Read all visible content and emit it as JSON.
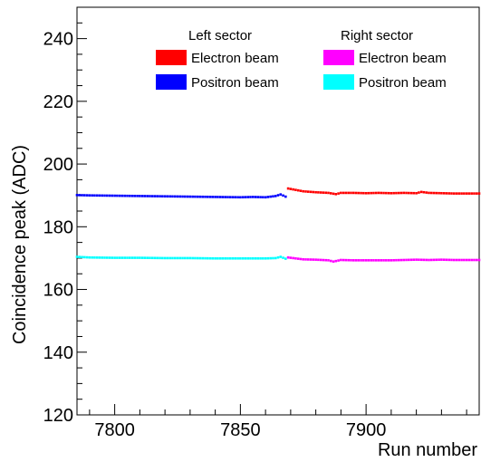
{
  "chart_data": {
    "type": "scatter",
    "title": "",
    "xlabel": "Run number",
    "ylabel": "Coincidence peak (ADC)",
    "xlim": [
      7785,
      7945
    ],
    "ylim": [
      120,
      250
    ],
    "xticks": [
      7800,
      7850,
      7900
    ],
    "yticks": [
      120,
      140,
      160,
      180,
      200,
      220,
      240
    ],
    "grid": false,
    "legend": {
      "placement": "top-right",
      "groups": [
        {
          "title": "Left sector",
          "entries": [
            "Electron beam",
            "Positron beam"
          ]
        },
        {
          "title": "Right sector",
          "entries": [
            "Electron beam",
            "Positron beam"
          ]
        }
      ]
    },
    "series": [
      {
        "name": "Electron beam",
        "sector": "Left sector",
        "color": "#ff0000",
        "x": [
          7869,
          7875,
          7880,
          7885,
          7888,
          7890,
          7895,
          7900,
          7905,
          7910,
          7915,
          7920,
          7922,
          7925,
          7930,
          7935,
          7940,
          7945
        ],
        "y": [
          192.2,
          191.3,
          191.0,
          190.8,
          190.4,
          190.8,
          190.8,
          190.7,
          190.8,
          190.7,
          190.8,
          190.7,
          191.1,
          190.8,
          190.7,
          190.6,
          190.6,
          190.6
        ]
      },
      {
        "name": "Positron beam",
        "sector": "Left sector",
        "color": "#0000ff",
        "x": [
          7785,
          7790,
          7800,
          7810,
          7820,
          7830,
          7840,
          7850,
          7855,
          7860,
          7864,
          7866,
          7868
        ],
        "y": [
          190.1,
          190.0,
          189.9,
          189.8,
          189.7,
          189.6,
          189.5,
          189.4,
          189.5,
          189.4,
          189.8,
          190.3,
          189.6
        ]
      },
      {
        "name": "Electron beam",
        "sector": "Right sector",
        "color": "#ff00ff",
        "x": [
          7869,
          7875,
          7880,
          7885,
          7887,
          7890,
          7895,
          7900,
          7905,
          7910,
          7915,
          7920,
          7925,
          7930,
          7935,
          7940,
          7945
        ],
        "y": [
          170.2,
          169.6,
          169.5,
          169.3,
          168.9,
          169.4,
          169.3,
          169.3,
          169.3,
          169.3,
          169.4,
          169.5,
          169.4,
          169.5,
          169.4,
          169.4,
          169.4
        ]
      },
      {
        "name": "Positron beam",
        "sector": "Right sector",
        "color": "#00ffff",
        "x": [
          7785,
          7790,
          7800,
          7810,
          7820,
          7830,
          7840,
          7850,
          7855,
          7860,
          7864,
          7866,
          7868
        ],
        "y": [
          170.4,
          170.2,
          170.1,
          170.1,
          170.0,
          170.0,
          169.9,
          169.9,
          169.9,
          169.9,
          170.0,
          170.4,
          169.8
        ]
      }
    ]
  }
}
